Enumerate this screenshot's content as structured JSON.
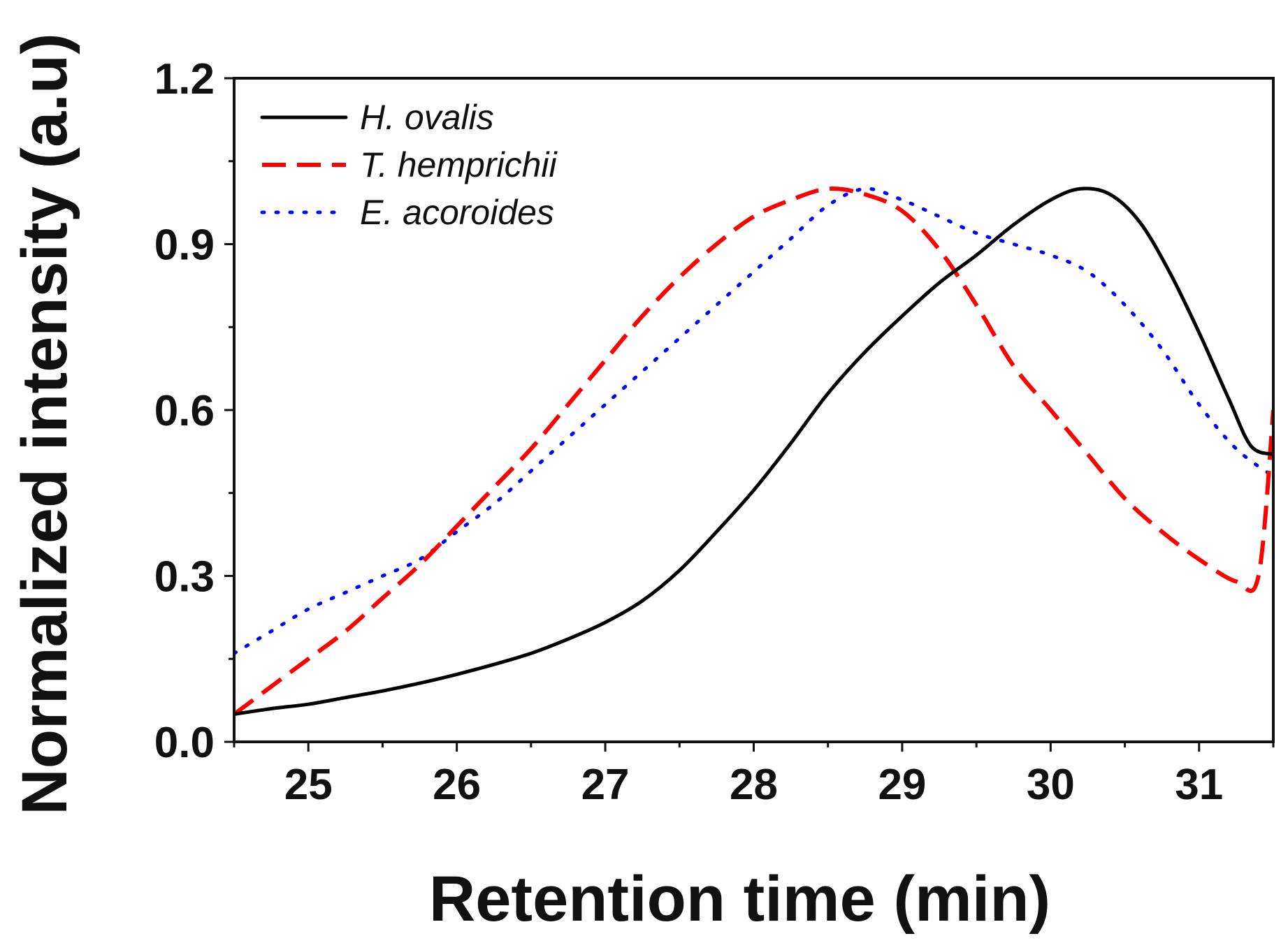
{
  "chart_data": {
    "type": "line",
    "title": "",
    "xlabel": "Retention time (min)",
    "ylabel": "Normalized intensity (a.u)",
    "xlim": [
      24.5,
      31.5
    ],
    "ylim": [
      0.0,
      1.2
    ],
    "xticks": [
      25,
      26,
      27,
      28,
      29,
      30,
      31
    ],
    "xtick_labels": [
      "25",
      "26",
      "27",
      "28",
      "29",
      "30",
      "31"
    ],
    "yticks": [
      0.0,
      0.3,
      0.6,
      0.9,
      1.2
    ],
    "ytick_labels": [
      "0.0",
      "0.3",
      "0.6",
      "0.9",
      "1.2"
    ],
    "grid": false,
    "legend_position": "top-left",
    "series": [
      {
        "name": "H. ovalis",
        "color": "#000000",
        "style": "solid",
        "x": [
          24.5,
          24.75,
          25.0,
          25.25,
          25.5,
          25.75,
          26.0,
          26.25,
          26.5,
          26.75,
          27.0,
          27.25,
          27.5,
          27.75,
          28.0,
          28.25,
          28.5,
          28.75,
          29.0,
          29.25,
          29.5,
          29.75,
          30.0,
          30.2,
          30.4,
          30.6,
          30.8,
          31.0,
          31.2,
          31.35,
          31.5
        ],
        "y": [
          0.05,
          0.06,
          0.068,
          0.08,
          0.092,
          0.106,
          0.122,
          0.14,
          0.16,
          0.186,
          0.216,
          0.255,
          0.31,
          0.38,
          0.455,
          0.54,
          0.63,
          0.705,
          0.77,
          0.83,
          0.88,
          0.935,
          0.98,
          1.0,
          0.99,
          0.94,
          0.85,
          0.74,
          0.62,
          0.535,
          0.52
        ]
      },
      {
        "name": "T. hemprichii",
        "color": "#ff0000",
        "style": "dashed",
        "x": [
          24.5,
          24.75,
          25.0,
          25.25,
          25.5,
          25.75,
          26.0,
          26.25,
          26.5,
          26.75,
          27.0,
          27.25,
          27.5,
          27.75,
          28.0,
          28.25,
          28.5,
          28.75,
          29.0,
          29.25,
          29.5,
          29.75,
          30.0,
          30.25,
          30.5,
          30.75,
          31.0,
          31.25,
          31.4,
          31.5
        ],
        "y": [
          0.05,
          0.1,
          0.15,
          0.2,
          0.26,
          0.32,
          0.39,
          0.46,
          0.53,
          0.61,
          0.69,
          0.77,
          0.84,
          0.9,
          0.95,
          0.98,
          1.0,
          0.99,
          0.96,
          0.89,
          0.79,
          0.68,
          0.6,
          0.52,
          0.44,
          0.38,
          0.33,
          0.29,
          0.3,
          0.6
        ]
      },
      {
        "name": "E. acoroides",
        "color": "#0000ff",
        "style": "dotted",
        "x": [
          24.5,
          24.75,
          25.0,
          25.25,
          25.5,
          25.75,
          26.0,
          26.25,
          26.5,
          26.75,
          27.0,
          27.25,
          27.5,
          27.75,
          28.0,
          28.25,
          28.5,
          28.75,
          29.0,
          29.25,
          29.5,
          29.75,
          30.0,
          30.25,
          30.5,
          30.75,
          31.0,
          31.25,
          31.5
        ],
        "y": [
          0.16,
          0.2,
          0.24,
          0.27,
          0.3,
          0.33,
          0.38,
          0.43,
          0.49,
          0.55,
          0.61,
          0.67,
          0.73,
          0.79,
          0.85,
          0.91,
          0.97,
          1.0,
          0.98,
          0.95,
          0.92,
          0.9,
          0.88,
          0.85,
          0.79,
          0.71,
          0.61,
          0.53,
          0.48
        ]
      }
    ]
  }
}
